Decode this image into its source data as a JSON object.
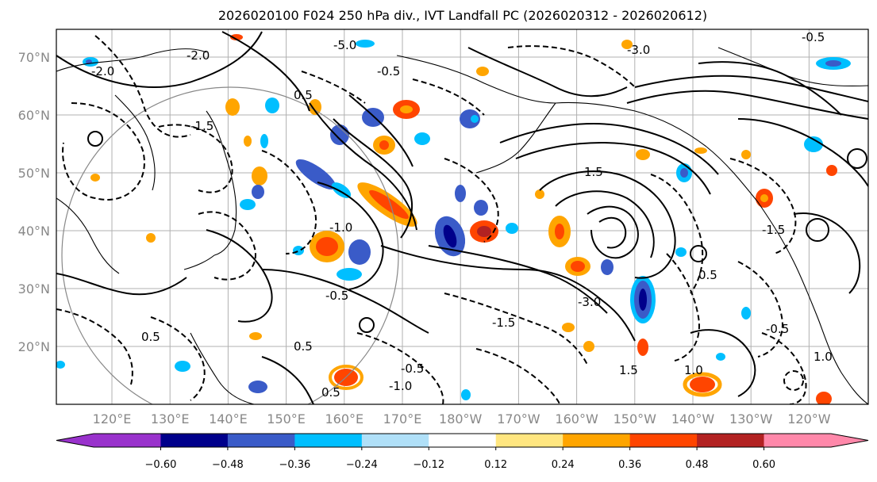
{
  "title": "2026020100 F024 250 hPa div., IVT Landfall PC (2026020312 - 2026020612)",
  "lat_labels": [
    "70°N",
    "60°N",
    "50°N",
    "40°N",
    "30°N",
    "20°N"
  ],
  "lon_labels": [
    "120°E",
    "130°E",
    "140°E",
    "150°E",
    "160°E",
    "170°E",
    "180°W",
    "170°W",
    "160°W",
    "150°W",
    "140°W",
    "130°W",
    "120°W"
  ],
  "colorbar": {
    "ticks": [
      "−0.60",
      "−0.48",
      "−0.36",
      "−0.24",
      "−0.12",
      "0.12",
      "0.24",
      "0.36",
      "0.48",
      "0.60"
    ],
    "colors": [
      "#9932cc",
      "#00008b",
      "#3a5bc8",
      "#00bfff",
      "#b0e0f8",
      "#ffffff",
      "#ffe680",
      "#ffa500",
      "#ff4500",
      "#b22222",
      "#ff88aa"
    ]
  },
  "contour_labels": [
    "-5.0",
    "-2.0",
    "-0.5",
    "0.5",
    "-1.5",
    "-3.0",
    "1.5",
    "-1.0",
    "0.5",
    "-0.5",
    "1.0",
    "-1.5",
    "-0.5",
    "-3.0",
    "0.5",
    "-1.0",
    "1.5",
    "0.5",
    "-0.5",
    "-1.5",
    "1.0",
    "-2.0",
    "0.5",
    "-0.5"
  ]
}
